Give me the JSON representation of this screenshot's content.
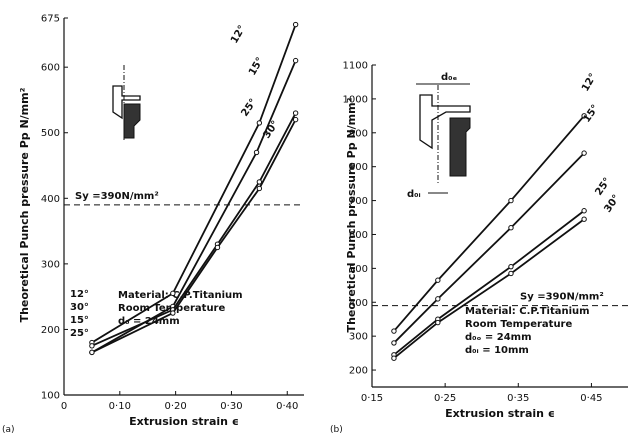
{
  "chart_data": [
    {
      "type": "line",
      "panel_label": "(a)",
      "xlabel": "Extrusion strain ϵ",
      "ylabel": "Theoretical Punch pressure Pp N/mm²",
      "xlim": [
        0,
        0.43
      ],
      "ylim": [
        100,
        675
      ],
      "x_tick_labels": [
        "0",
        "0·10",
        "0·20",
        "0·30",
        "0·40"
      ],
      "x_tick_values": [
        0,
        0.1,
        0.2,
        0.3,
        0.4
      ],
      "y_tick_labels": [
        "100",
        "200",
        "300",
        "400",
        "500",
        "600",
        "675"
      ],
      "y_tick_values": [
        100,
        200,
        300,
        400,
        500,
        600,
        675
      ],
      "reference_line": {
        "y": 390,
        "label": "Sy =390N/mm²",
        "style": "dashed"
      },
      "notes": [
        "Material: C.P.Titanium",
        "Room Temperature",
        "d₀ = 24mm"
      ],
      "series": [
        {
          "name": "12°",
          "x": [
            0.05,
            0.195,
            0.35,
            0.415
          ],
          "y": [
            180,
            255,
            515,
            665
          ]
        },
        {
          "name": "15°",
          "x": [
            0.05,
            0.195,
            0.345,
            0.415
          ],
          "y": [
            165,
            235,
            470,
            610
          ]
        },
        {
          "name": "25°",
          "x": [
            0.05,
            0.195,
            0.275,
            0.35,
            0.415
          ],
          "y": [
            175,
            230,
            330,
            425,
            530
          ]
        },
        {
          "name": "30°",
          "x": [
            0.05,
            0.195,
            0.275,
            0.35,
            0.415
          ],
          "y": [
            165,
            225,
            325,
            415,
            520
          ]
        }
      ],
      "left_labels": [
        "12°",
        "30°",
        "15°",
        "25°"
      ]
    },
    {
      "type": "line",
      "panel_label": "(b)",
      "xlabel": "Extrusion strain ϵ",
      "ylabel": "Theoretical Punch pressure Pp N/mm²",
      "xlim": [
        0.15,
        0.5
      ],
      "ylim": [
        150,
        1100
      ],
      "x_tick_labels": [
        "0·15",
        "0·25",
        "0·35",
        "0·45"
      ],
      "x_tick_values": [
        0.15,
        0.25,
        0.35,
        0.45
      ],
      "y_tick_labels": [
        "200",
        "300",
        "400",
        "500",
        "600",
        "700",
        "800",
        "900",
        "1000",
        "1100"
      ],
      "y_tick_values": [
        200,
        300,
        400,
        500,
        600,
        700,
        800,
        900,
        1000,
        1100
      ],
      "reference_line": {
        "y": 390,
        "label": "Sy =390N/mm²",
        "style": "dashed"
      },
      "notes": [
        "Material: C.P.Titanium",
        "Room Temperature",
        "d₀ₒ = 24mm",
        "d₀ᵢ = 10mm"
      ],
      "diagram_labels": [
        "d₀ₑ",
        "d₀ᵢ"
      ],
      "series": [
        {
          "name": "12°",
          "x": [
            0.18,
            0.24,
            0.34,
            0.44
          ],
          "y": [
            315,
            465,
            700,
            950
          ]
        },
        {
          "name": "15°",
          "x": [
            0.18,
            0.24,
            0.34,
            0.44
          ],
          "y": [
            280,
            410,
            620,
            840
          ]
        },
        {
          "name": "25°",
          "x": [
            0.18,
            0.24,
            0.34,
            0.44
          ],
          "y": [
            245,
            350,
            505,
            670
          ]
        },
        {
          "name": "30°",
          "x": [
            0.18,
            0.24,
            0.34,
            0.44
          ],
          "y": [
            235,
            340,
            485,
            645
          ]
        }
      ]
    }
  ]
}
